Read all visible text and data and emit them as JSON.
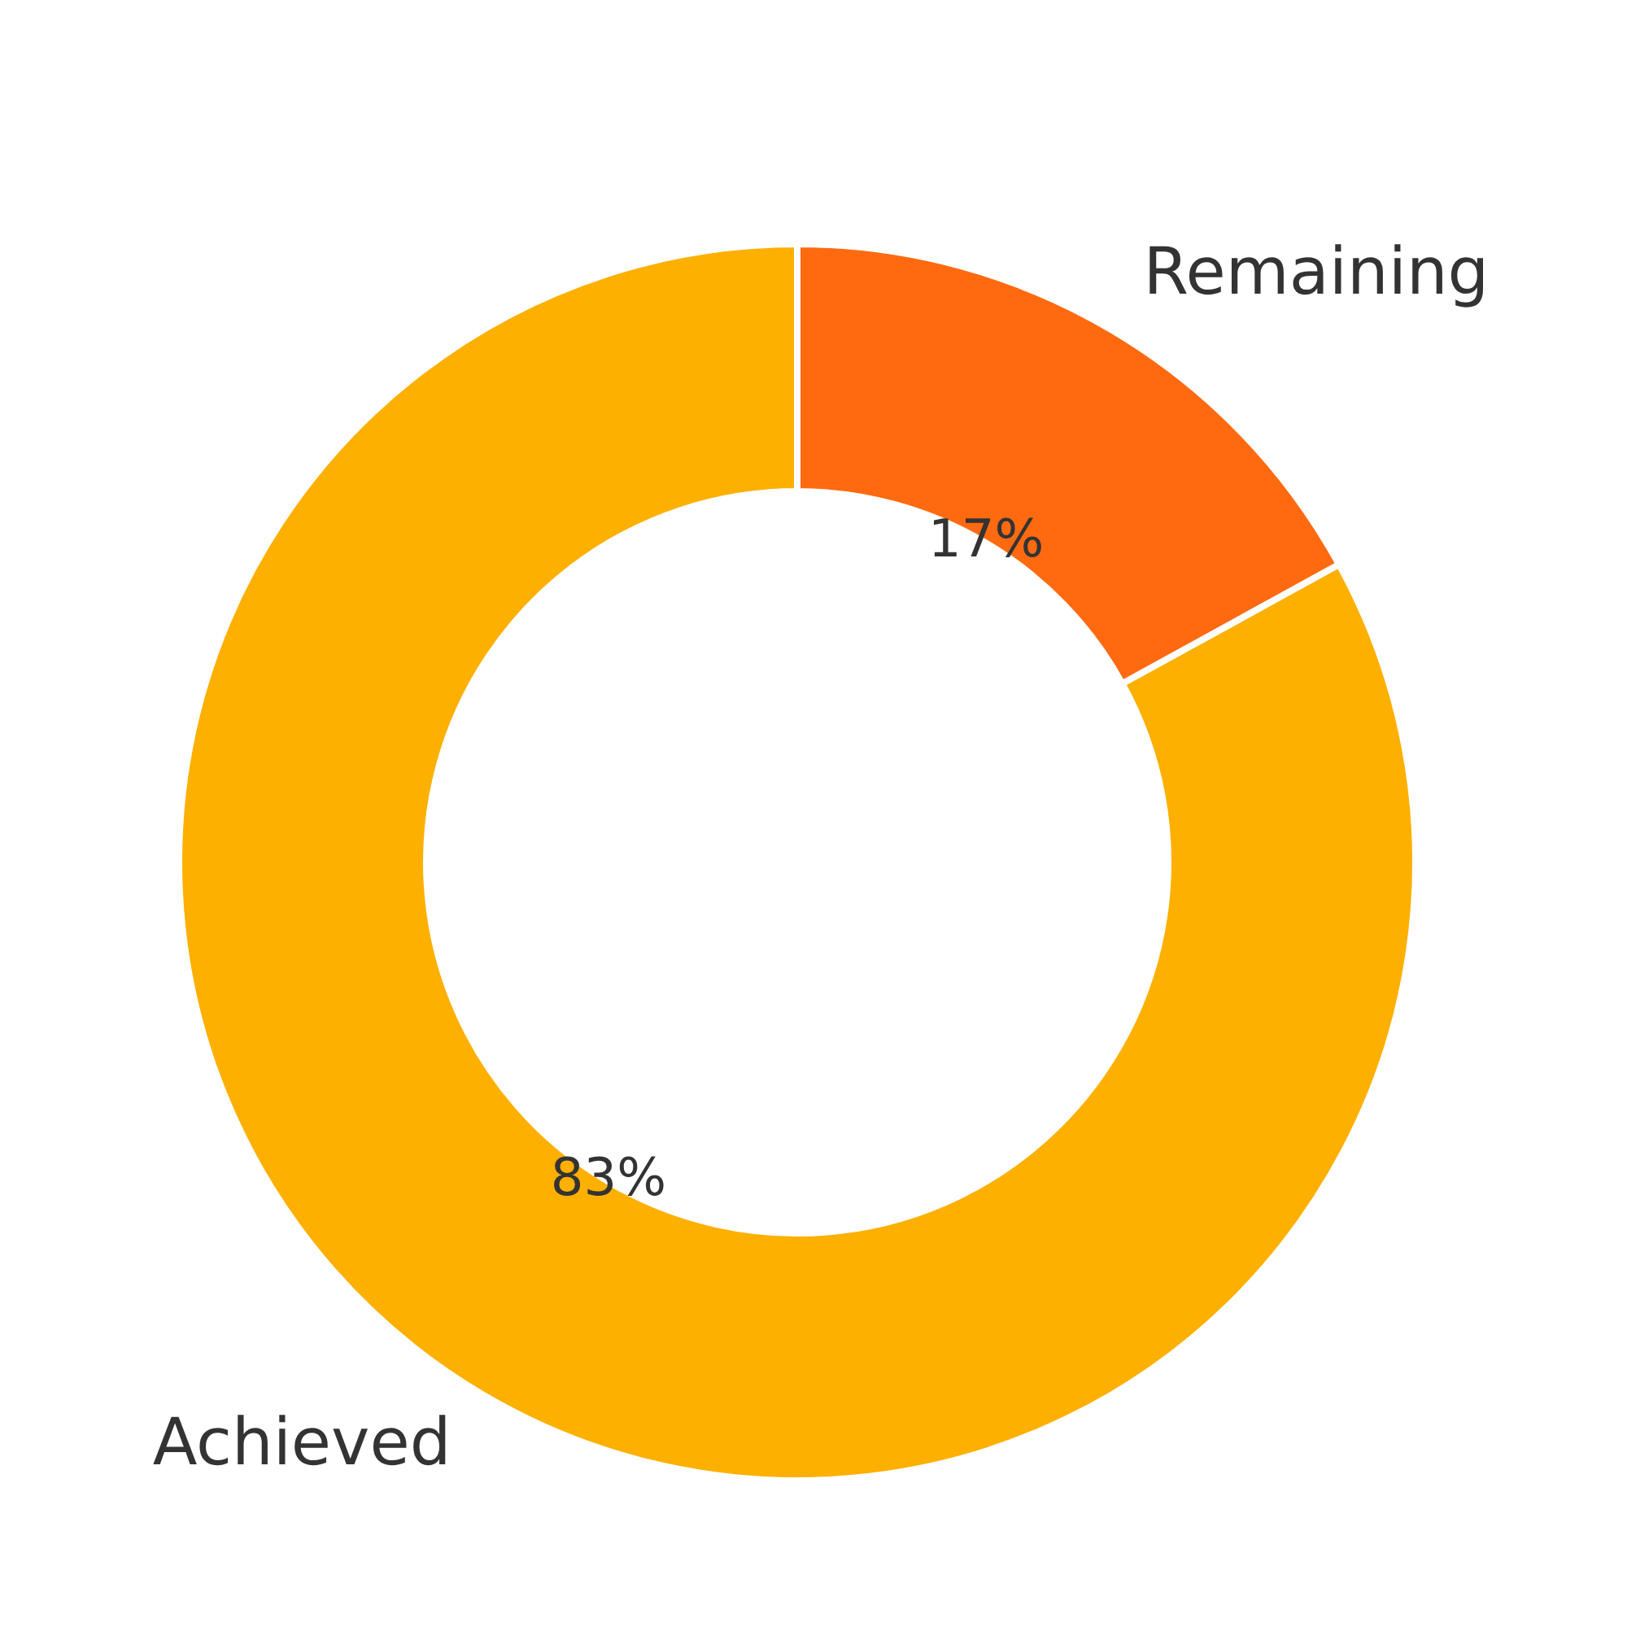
{
  "chart_data": {
    "type": "donut",
    "categories": [
      "Achieved",
      "Remaining"
    ],
    "values": [
      83,
      17
    ],
    "colors": [
      "#fdb000",
      "#ff6a10"
    ],
    "value_labels": [
      "83%",
      "17%"
    ],
    "legend": false
  }
}
